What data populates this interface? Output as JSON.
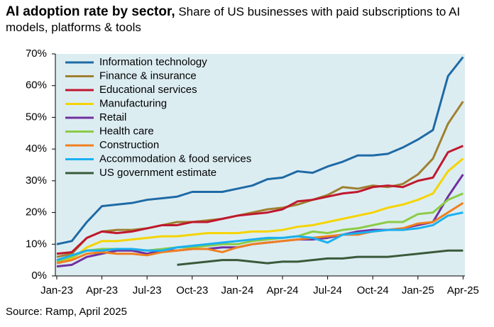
{
  "chart_data": {
    "type": "line",
    "title": "AI adoption rate by sector,",
    "subtitle": "Share of US businesses with paid subscriptions to AI models, platforms & tools",
    "source": "Source: Ramp, April 2025",
    "categories": [
      "Jan-23",
      null,
      null,
      "Apr-23",
      null,
      null,
      "Jul-23",
      null,
      null,
      "Oct-23",
      null,
      null,
      "Jan-24",
      null,
      null,
      "Apr-24",
      null,
      null,
      "Jul-24",
      null,
      null,
      "Oct-24",
      null,
      null,
      "Jan-25",
      null,
      null,
      "Apr-25"
    ],
    "ylim": [
      0,
      70
    ],
    "yticks": [
      {
        "value": 0,
        "label": "0%"
      },
      {
        "value": 10,
        "label": "10%"
      },
      {
        "value": 20,
        "label": "20%"
      },
      {
        "value": 30,
        "label": "30%"
      },
      {
        "value": 40,
        "label": "40%"
      },
      {
        "value": 50,
        "label": "50%"
      },
      {
        "value": 60,
        "label": "60%"
      },
      {
        "value": 70,
        "label": "70%"
      }
    ],
    "legend": "top-left",
    "series": [
      {
        "name": "Information technology",
        "color": "#1f6aa5",
        "values": [
          10,
          11,
          17,
          22,
          22.5,
          23,
          24,
          24.5,
          25,
          26.5,
          26.5,
          26.5,
          27.5,
          28.5,
          30.5,
          31,
          33,
          32.5,
          34.5,
          36,
          38,
          38,
          38.5,
          40.5,
          43,
          46,
          63,
          69
        ]
      },
      {
        "name": "Finance & insurance",
        "color": "#a08030",
        "values": [
          6,
          7,
          12,
          14,
          14.5,
          14.5,
          15,
          16,
          17,
          17,
          17.5,
          18,
          19,
          20,
          21,
          21.5,
          22.5,
          24,
          25.5,
          28,
          27.5,
          28.5,
          28,
          29,
          32,
          37,
          48,
          55
        ]
      },
      {
        "name": "Educational services",
        "color": "#c0182e",
        "values": [
          7,
          7.5,
          12,
          14,
          13.5,
          14,
          15,
          16,
          16,
          17,
          17,
          18,
          19,
          19.5,
          20,
          21,
          23.5,
          24,
          25,
          26,
          26.5,
          28,
          28.5,
          28,
          30,
          31,
          39,
          41
        ]
      },
      {
        "name": "Manufacturing",
        "color": "#f5d400",
        "values": [
          5,
          5.5,
          9,
          11,
          11,
          11.5,
          12,
          12.5,
          12.5,
          13,
          13.5,
          13.5,
          13.5,
          14,
          14,
          14.5,
          15.5,
          16,
          17,
          18,
          19,
          20,
          21.5,
          22.5,
          24,
          26,
          33,
          37
        ]
      },
      {
        "name": "Retail",
        "color": "#7030a0",
        "values": [
          3,
          3.5,
          6,
          7,
          8,
          8,
          7,
          8,
          8,
          8.5,
          8.5,
          9,
          9,
          10,
          10.5,
          11,
          11.5,
          11.5,
          12,
          13,
          14,
          14.5,
          14.5,
          15,
          16,
          17,
          25,
          32
        ]
      },
      {
        "name": "Health care",
        "color": "#8ccc44",
        "values": [
          4.5,
          6,
          8,
          8.5,
          8.5,
          8.5,
          8,
          8.5,
          9,
          9,
          9.5,
          10,
          10,
          11,
          11.5,
          12,
          12.5,
          14,
          13.5,
          14.5,
          15,
          16,
          17,
          17,
          19.5,
          20,
          24,
          26
        ]
      },
      {
        "name": "Construction",
        "color": "#f08020",
        "values": [
          4,
          5,
          7,
          7.5,
          7,
          7,
          6.5,
          7.5,
          8,
          8.5,
          8.5,
          7.5,
          9,
          10,
          10.5,
          11,
          11.5,
          12,
          12.5,
          13,
          13,
          14,
          14.5,
          15,
          16.5,
          17,
          20,
          23
        ]
      },
      {
        "name": "Accommodation & food services",
        "color": "#1ab0f0",
        "values": [
          5,
          6.5,
          8,
          8,
          8.5,
          8.5,
          8,
          8,
          9,
          9.5,
          10,
          10.5,
          11,
          11.5,
          12,
          12,
          12.5,
          12,
          10.5,
          13,
          13.5,
          14,
          14.5,
          14.5,
          15,
          16,
          19,
          20
        ]
      },
      {
        "name": "US government estimate",
        "color": "#3a5a3a",
        "values": [
          null,
          null,
          null,
          null,
          null,
          null,
          null,
          null,
          3.5,
          4,
          4.5,
          5,
          5,
          4.5,
          4,
          4.5,
          4.5,
          5,
          5.5,
          5.5,
          6,
          6,
          6,
          6.5,
          7,
          7.5,
          8,
          8
        ]
      }
    ]
  }
}
